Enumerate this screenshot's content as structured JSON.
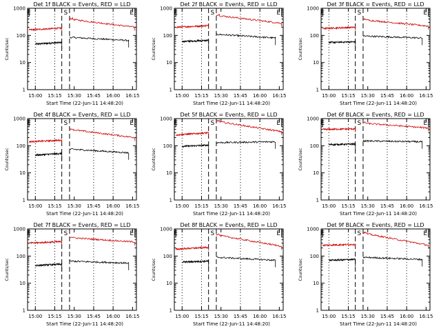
{
  "colors": {
    "events": "#000000",
    "lld": "#cc0000",
    "axes": "#000000",
    "background": "#ffffff"
  },
  "chart_data": [
    {
      "type": "line",
      "title": "Det 1f BLACK = Events, RED = LLD",
      "xlabel": "Start Time (22-Jun-11 14:48:20)",
      "ylabel": "Counts/sec",
      "yscale": "log",
      "ylim": [
        1,
        1000
      ],
      "xlim": [
        14.9,
        16.3
      ],
      "xticks": [
        "15:00",
        "15:15",
        "15:30",
        "15:45",
        "16:00",
        "16:15"
      ],
      "yticks": [
        "1",
        "10",
        "100",
        "1000"
      ],
      "markers": [
        "E",
        "S",
        "E"
      ],
      "series": [
        {
          "name": "Events",
          "segments": [
            {
              "x": [
                15.0,
                15.34
              ],
              "y": [
                48,
                55
              ]
            },
            {
              "x": [
                15.44,
                16.2
              ],
              "y": [
                85,
                65
              ]
            }
          ]
        },
        {
          "name": "LLD",
          "segments": [
            {
              "x": [
                14.92,
                15.34
              ],
              "y": [
                160,
                185
              ]
            },
            {
              "x": [
                15.44,
                16.28
              ],
              "y": [
                400,
                200
              ]
            }
          ]
        }
      ]
    },
    {
      "type": "line",
      "title": "Det 2f BLACK = Events, RED = LLD",
      "xlabel": "Start Time (22-Jun-11 14:48:20)",
      "ylabel": "Counts/sec",
      "yscale": "log",
      "ylim": [
        1,
        1000
      ],
      "xlim": [
        14.9,
        16.3
      ],
      "xticks": [
        "15:00",
        "15:15",
        "15:30",
        "15:45",
        "16:00",
        "16:15"
      ],
      "yticks": [
        "1",
        "10",
        "100",
        "1000"
      ],
      "markers": [
        "E",
        "S",
        "E"
      ],
      "series": [
        {
          "name": "Events",
          "segments": [
            {
              "x": [
                15.0,
                15.34
              ],
              "y": [
                60,
                65
              ]
            },
            {
              "x": [
                15.44,
                16.2
              ],
              "y": [
                110,
                80
              ]
            }
          ]
        },
        {
          "name": "LLD",
          "segments": [
            {
              "x": [
                14.92,
                15.34
              ],
              "y": [
                200,
                230
              ]
            },
            {
              "x": [
                15.44,
                16.28
              ],
              "y": [
                550,
                280
              ]
            }
          ]
        }
      ]
    },
    {
      "type": "line",
      "title": "Det 3f BLACK = Events, RED = LLD",
      "xlabel": "Start Time (22-Jun-11 14:48:20)",
      "ylabel": "Counts/sec",
      "yscale": "log",
      "ylim": [
        1,
        1000
      ],
      "xlim": [
        14.9,
        16.3
      ],
      "xticks": [
        "15:00",
        "15:15",
        "15:30",
        "15:45",
        "16:00",
        "16:15"
      ],
      "yticks": [
        "1",
        "10",
        "100",
        "1000"
      ],
      "markers": [
        "E",
        "S",
        "E"
      ],
      "series": [
        {
          "name": "Events",
          "segments": [
            {
              "x": [
                15.0,
                15.34
              ],
              "y": [
                55,
                58
              ]
            },
            {
              "x": [
                15.44,
                16.2
              ],
              "y": [
                95,
                80
              ]
            }
          ]
        },
        {
          "name": "LLD",
          "segments": [
            {
              "x": [
                14.92,
                15.34
              ],
              "y": [
                180,
                200
              ]
            },
            {
              "x": [
                15.44,
                16.28
              ],
              "y": [
                380,
                220
              ]
            }
          ]
        }
      ]
    },
    {
      "type": "line",
      "title": "Det 4f BLACK = Events, RED = LLD",
      "xlabel": "Start Time (22-Jun-11 14:48:20)",
      "ylabel": "Counts/sec",
      "yscale": "log",
      "ylim": [
        1,
        1000
      ],
      "xlim": [
        14.9,
        16.3
      ],
      "xticks": [
        "15:00",
        "15:15",
        "15:30",
        "15:45",
        "16:00",
        "16:15"
      ],
      "yticks": [
        "1",
        "10",
        "100",
        "1000"
      ],
      "markers": [
        "E",
        "S",
        "E"
      ],
      "series": [
        {
          "name": "Events",
          "segments": [
            {
              "x": [
                15.0,
                15.34
              ],
              "y": [
                45,
                52
              ]
            },
            {
              "x": [
                15.44,
                16.2
              ],
              "y": [
                75,
                55
              ]
            }
          ]
        },
        {
          "name": "LLD",
          "segments": [
            {
              "x": [
                14.92,
                15.34
              ],
              "y": [
                140,
                160
              ]
            },
            {
              "x": [
                15.44,
                16.28
              ],
              "y": [
                400,
                200
              ]
            }
          ]
        }
      ]
    },
    {
      "type": "line",
      "title": "Det 5f BLACK = Events, RED = LLD",
      "xlabel": "Start Time (22-Jun-11 14:48:20)",
      "ylabel": "Counts/sec",
      "yscale": "log",
      "ylim": [
        1,
        1000
      ],
      "xlim": [
        14.9,
        16.3
      ],
      "xticks": [
        "15:00",
        "15:15",
        "15:30",
        "15:45",
        "16:00",
        "16:15"
      ],
      "yticks": [
        "1",
        "10",
        "100",
        "1000"
      ],
      "markers": [
        "E",
        "S",
        "E"
      ],
      "series": [
        {
          "name": "Events",
          "segments": [
            {
              "x": [
                15.0,
                15.34
              ],
              "y": [
                95,
                105
              ]
            },
            {
              "x": [
                15.44,
                16.2
              ],
              "y": [
                130,
                140
              ]
            }
          ]
        },
        {
          "name": "LLD",
          "segments": [
            {
              "x": [
                14.92,
                15.34
              ],
              "y": [
                250,
                300
              ]
            },
            {
              "x": [
                15.44,
                16.28
              ],
              "y": [
                800,
                330
              ]
            }
          ]
        }
      ]
    },
    {
      "type": "line",
      "title": "Det 6f BLACK = Events, RED = LLD",
      "xlabel": "Start Time (22-Jun-11 14:48:20)",
      "ylabel": "Counts/sec",
      "yscale": "log",
      "ylim": [
        1,
        1000
      ],
      "xlim": [
        14.9,
        16.3
      ],
      "xticks": [
        "15:00",
        "15:15",
        "15:30",
        "15:45",
        "16:00",
        "16:15"
      ],
      "yticks": [
        "1",
        "10",
        "100",
        "1000"
      ],
      "markers": [
        "E",
        "S",
        "E"
      ],
      "series": [
        {
          "name": "Events",
          "segments": [
            {
              "x": [
                15.0,
                15.34
              ],
              "y": [
                110,
                115
              ]
            },
            {
              "x": [
                15.44,
                16.2
              ],
              "y": [
                150,
                140
              ]
            }
          ]
        },
        {
          "name": "LLD",
          "segments": [
            {
              "x": [
                14.92,
                15.34
              ],
              "y": [
                400,
                420
              ]
            },
            {
              "x": [
                15.44,
                16.28
              ],
              "y": [
                680,
                450
              ]
            }
          ]
        }
      ]
    },
    {
      "type": "line",
      "title": "Det 7f BLACK = Events, RED = LLD",
      "xlabel": "Start Time (22-Jun-11 14:48:20)",
      "ylabel": "Counts/sec",
      "yscale": "log",
      "ylim": [
        1,
        1000
      ],
      "xlim": [
        14.9,
        16.3
      ],
      "xticks": [
        "15:00",
        "15:15",
        "15:30",
        "15:45",
        "16:00",
        "16:15"
      ],
      "yticks": [
        "1",
        "10",
        "100",
        "1000"
      ],
      "markers": [
        "E",
        "S",
        "E"
      ],
      "series": [
        {
          "name": "Events",
          "segments": [
            {
              "x": [
                15.0,
                15.34
              ],
              "y": [
                45,
                50
              ]
            },
            {
              "x": [
                15.44,
                16.2
              ],
              "y": [
                65,
                55
              ]
            }
          ]
        },
        {
          "name": "LLD",
          "segments": [
            {
              "x": [
                14.92,
                15.34
              ],
              "y": [
                300,
                340
              ]
            },
            {
              "x": [
                15.44,
                16.28
              ],
              "y": [
                480,
                330
              ]
            }
          ]
        }
      ]
    },
    {
      "type": "line",
      "title": "Det 8f BLACK = Events, RED = LLD",
      "xlabel": "Start Time (22-Jun-11 14:48:20)",
      "ylabel": "Counts/sec",
      "yscale": "log",
      "ylim": [
        1,
        1000
      ],
      "xlim": [
        14.9,
        16.3
      ],
      "xticks": [
        "15:00",
        "15:15",
        "15:30",
        "15:45",
        "16:00",
        "16:15"
      ],
      "yticks": [
        "1",
        "10",
        "100",
        "1000"
      ],
      "markers": [
        "E",
        "S",
        "E"
      ],
      "series": [
        {
          "name": "Events",
          "segments": [
            {
              "x": [
                15.0,
                15.34
              ],
              "y": [
                60,
                65
              ]
            },
            {
              "x": [
                15.44,
                16.2
              ],
              "y": [
                90,
                70
              ]
            }
          ]
        },
        {
          "name": "LLD",
          "segments": [
            {
              "x": [
                14.92,
                15.34
              ],
              "y": [
                180,
                210
              ]
            },
            {
              "x": [
                15.44,
                16.28
              ],
              "y": [
                600,
                230
              ]
            }
          ]
        }
      ]
    },
    {
      "type": "line",
      "title": "Det 9f BLACK = Events, RED = LLD",
      "xlabel": "Start Time (22-Jun-11 14:48:20)",
      "ylabel": "Counts/sec",
      "yscale": "log",
      "ylim": [
        1,
        1000
      ],
      "xlim": [
        14.9,
        16.3
      ],
      "xticks": [
        "15:00",
        "15:15",
        "15:30",
        "15:45",
        "16:00",
        "16:15"
      ],
      "yticks": [
        "1",
        "10",
        "100",
        "1000"
      ],
      "markers": [
        "E",
        "S",
        "E"
      ],
      "series": [
        {
          "name": "Events",
          "segments": [
            {
              "x": [
                15.0,
                15.34
              ],
              "y": [
                70,
                75
              ]
            },
            {
              "x": [
                15.44,
                16.2
              ],
              "y": [
                90,
                75
              ]
            }
          ]
        },
        {
          "name": "LLD",
          "segments": [
            {
              "x": [
                14.92,
                15.34
              ],
              "y": [
                250,
                270
              ]
            },
            {
              "x": [
                15.44,
                16.28
              ],
              "y": [
                700,
                250
              ]
            }
          ]
        }
      ]
    }
  ]
}
